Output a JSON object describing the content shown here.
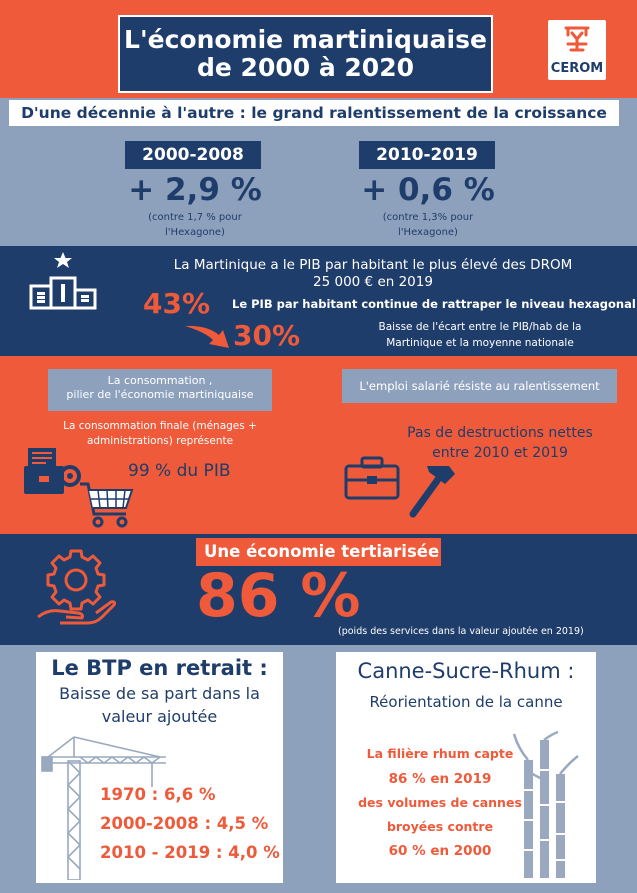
{
  "colors": {
    "orange": "#ee5a3a",
    "navy": "#1f3d6b",
    "slate": "#8da1bd",
    "light": "#c9d4e3",
    "white": "#ffffff",
    "crane": "#9aa9bf"
  },
  "header": {
    "title_line1": "L'économie martiniquaise",
    "title_line2": "de 2000 à 2020",
    "logo_text": "CEROM",
    "logo_icon": "cerom-logo-icon"
  },
  "growth": {
    "banner": "D'une décennie à l'autre : le grand ralentissement de la croissance",
    "period1": {
      "label": "2000-2008",
      "value": "+ 2,9 %",
      "note_line1": "(contre 1,7 % pour",
      "note_line2": "l'Hexagone)"
    },
    "period2": {
      "label": "2010-2019",
      "value": "+ 0,6 %",
      "note_line1": "(contre 1,3% pour",
      "note_line2": "l'Hexagone)"
    }
  },
  "pib": {
    "podium_icon": "podium-icon",
    "line1": "La Martinique a le PIB par habitant le plus élevé des DROM",
    "line2": "25 000 € en 2019",
    "pct_before": "43%",
    "pct_after": "30%",
    "subtitle": "Le PIB par habitant continue de rattraper le niveau hexagonal",
    "note_line1": "Baisse de l'écart entre le PIB/hab de la",
    "note_line2": "Martinique et la moyenne nationale"
  },
  "conso": {
    "title_line1": "La consommation ,",
    "title_line2": "pilier de l'économie martiniquaise",
    "text_line1": "La consommation finale (ménages +",
    "text_line2": "administrations) représente",
    "value": "99 % du PIB"
  },
  "emploi": {
    "title": "L'emploi salarié résiste au ralentissement",
    "text_line1": "Pas de destructions nettes",
    "text_line2": "entre 2010 et 2019"
  },
  "tertiaire": {
    "title": "Une économie tertiarisée",
    "value": "86 %",
    "note": "(poids des services dans la valeur ajoutée en 2019)"
  },
  "btp": {
    "title": "Le BTP en retrait :",
    "sub_line1": "Baisse de sa part dans la",
    "sub_line2": "valeur ajoutée",
    "stat1": "1970 : 6,6 %",
    "stat2": "2000-2008 : 4,5 %",
    "stat3": "2010 - 2019 : 4,0 %"
  },
  "canne": {
    "title": "Canne-Sucre-Rhum :",
    "sub": "Réorientation de la canne",
    "line1": "La filière rhum capte",
    "line2": "86 % en 2019",
    "line3": "des volumes de cannes",
    "line4": "broyées contre",
    "line5": "60 % en 2000"
  }
}
